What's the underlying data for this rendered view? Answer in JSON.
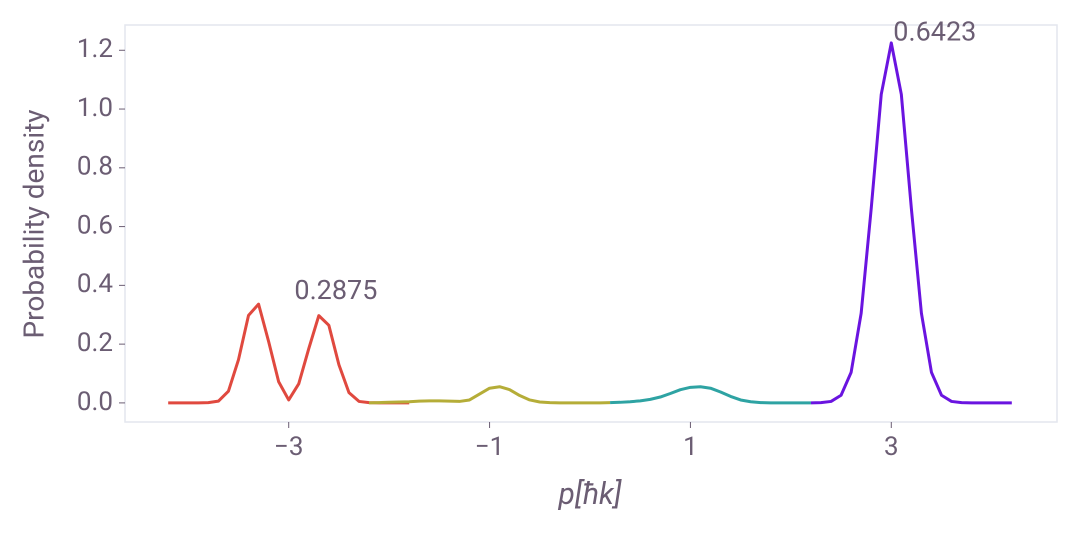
{
  "chart_data": {
    "type": "line",
    "xlabel": "p[ħk]",
    "ylabel": "Probability density",
    "xlim": [
      -4.63,
      4.65
    ],
    "ylim": [
      -0.065,
      1.286
    ],
    "xticks": [
      {
        "value": -3,
        "label": "−3"
      },
      {
        "value": -1,
        "label": "−1"
      },
      1,
      3
    ],
    "yticks": [
      {
        "value": 0,
        "label": "0.0"
      },
      {
        "value": 0.2,
        "label": "0.2"
      },
      {
        "value": 0.4,
        "label": "0.4"
      },
      {
        "value": 0.6,
        "label": "0.6"
      },
      {
        "value": 0.8,
        "label": "0.8"
      },
      {
        "value": 1,
        "label": "1.0"
      },
      {
        "value": 1.2,
        "label": "1.2"
      }
    ],
    "grid": false,
    "series": [
      {
        "color": "#e0493f",
        "x": [
          -4.2,
          -4.1,
          -4.0,
          -3.9,
          -3.8,
          -3.7,
          -3.6,
          -3.5,
          -3.4,
          -3.3,
          -3.2,
          -3.1,
          -3.0,
          -2.9,
          -2.8,
          -2.7,
          -2.6,
          -2.5,
          -2.4,
          -2.3,
          -2.2,
          -2.1,
          -2.0,
          -1.9,
          -1.8
        ],
        "values": [
          0,
          0,
          0,
          0,
          0.001,
          0.006,
          0.04,
          0.147,
          0.298,
          0.336,
          0.209,
          0.072,
          0.01,
          0.065,
          0.185,
          0.297,
          0.264,
          0.13,
          0.035,
          0.005,
          0.001,
          0,
          0,
          0,
          0
        ]
      },
      {
        "color": "#b5ad38",
        "x": [
          -2.2,
          -2.1,
          -2.0,
          -1.9,
          -1.8,
          -1.7,
          -1.6,
          -1.5,
          -1.4,
          -1.3,
          -1.2,
          -1.1,
          -1.0,
          -0.9,
          -0.8,
          -0.7,
          -0.6,
          -0.5,
          -0.4,
          -0.3,
          -0.2,
          -0.1,
          0,
          0.1,
          0.2
        ],
        "values": [
          0,
          0.001,
          0.002,
          0.003,
          0.004,
          0.006,
          0.007,
          0.007,
          0.006,
          0.005,
          0.01,
          0.03,
          0.05,
          0.055,
          0.045,
          0.025,
          0.01,
          0.003,
          0.001,
          0,
          0,
          0,
          0,
          0,
          0.001
        ]
      },
      {
        "color": "#2ea3a3",
        "x": [
          0.2,
          0.3,
          0.4,
          0.5,
          0.6,
          0.7,
          0.8,
          0.9,
          1.0,
          1.1,
          1.2,
          1.3,
          1.4,
          1.5,
          1.6,
          1.7,
          1.8,
          1.9,
          2.0,
          2.1,
          2.2
        ],
        "values": [
          0.001,
          0.002,
          0.004,
          0.007,
          0.012,
          0.02,
          0.032,
          0.045,
          0.053,
          0.055,
          0.05,
          0.037,
          0.022,
          0.01,
          0.004,
          0.001,
          0,
          0,
          0,
          0,
          0
        ]
      },
      {
        "color": "#6a14e0",
        "x": [
          2.2,
          2.3,
          2.4,
          2.5,
          2.6,
          2.7,
          2.8,
          2.9,
          3.0,
          3.1,
          3.2,
          3.3,
          3.4,
          3.5,
          3.6,
          3.7,
          3.8,
          3.9,
          4.0,
          4.1,
          4.2
        ],
        "values": [
          0,
          0.001,
          0.005,
          0.026,
          0.104,
          0.305,
          0.661,
          1.05,
          1.225,
          1.05,
          0.661,
          0.305,
          0.104,
          0.026,
          0.005,
          0.001,
          0,
          0,
          0,
          0,
          0
        ]
      }
    ],
    "annotations": [
      {
        "text": "0.2875",
        "x": -2.53,
        "y": 0.378
      },
      {
        "text": "0.6423",
        "x": 3.02,
        "y": 1.258
      }
    ]
  }
}
